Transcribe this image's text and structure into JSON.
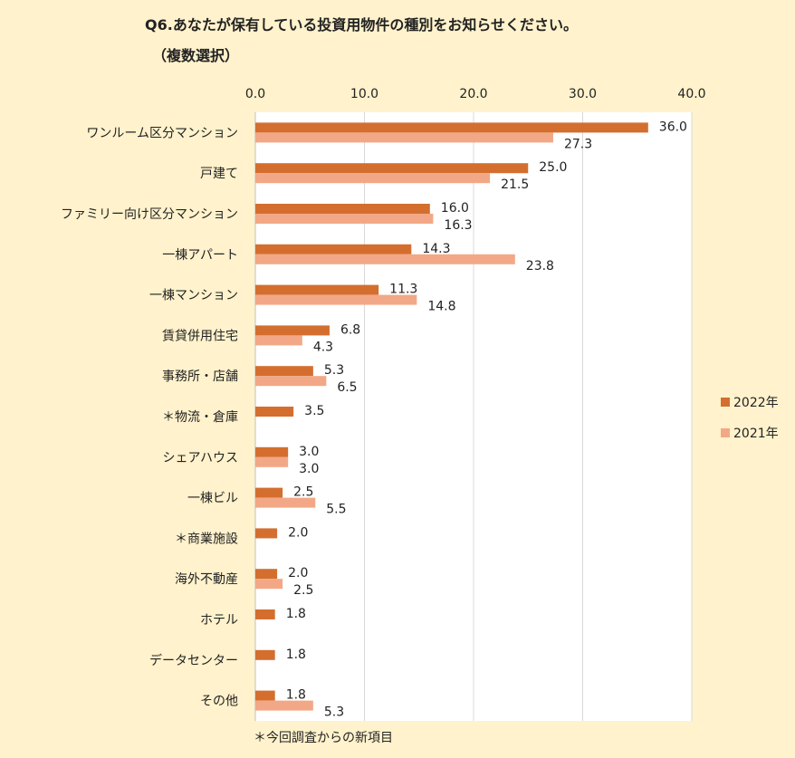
{
  "header": {
    "title": "Q6.あなたが保有している投資用物件の種別をお知らせください。",
    "subtitle": "（複数選択）"
  },
  "footnote": "＊今回調査からの新項目",
  "colors": {
    "series_2022": "#d46e2f",
    "series_2021": "#f2a886",
    "plot_background": "#ffffff",
    "page_background": "#fff2cc",
    "gridline": "#d9d9d9"
  },
  "chart_data": {
    "type": "bar",
    "orientation": "horizontal",
    "categories": [
      "ワンルーム区分マンション",
      "戸建て",
      "ファミリー向け区分マンション",
      "一棟アパート",
      "一棟マンション",
      "賃貸併用住宅",
      "事務所・店舗",
      "＊物流・倉庫",
      "シェアハウス",
      "一棟ビル",
      "＊商業施設",
      "海外不動産",
      "ホテル",
      "データセンター",
      "その他"
    ],
    "series": [
      {
        "name": "2022年",
        "values": [
          36.0,
          25.0,
          16.0,
          14.3,
          11.3,
          6.8,
          5.3,
          3.5,
          3.0,
          2.5,
          2.0,
          2.0,
          1.8,
          1.8,
          1.8
        ],
        "labels": [
          "36.0",
          "25.0",
          "16.0",
          "14.3",
          "11.3",
          "6.8",
          "5.3",
          "3.5",
          "3.0",
          "2.5",
          "2.0",
          "2.0",
          "1.8",
          "1.8",
          "1.8"
        ]
      },
      {
        "name": "2021年",
        "values": [
          27.3,
          21.5,
          16.3,
          23.8,
          14.8,
          4.3,
          6.5,
          null,
          3.0,
          5.5,
          null,
          2.5,
          null,
          null,
          5.3
        ],
        "labels": [
          "27.3",
          "21.5",
          "16.3",
          "23.8",
          "14.8",
          "4.3",
          "6.5",
          "",
          "3.0",
          "5.5",
          "",
          "2.5",
          "",
          "",
          "5.3"
        ]
      }
    ],
    "xlim": [
      0,
      40
    ],
    "xticks": [
      "0.0",
      "10.0",
      "20.0",
      "30.0",
      "40.0"
    ],
    "xtick_values": [
      0,
      10,
      20,
      30,
      40
    ],
    "axis_position": "top",
    "grid": true,
    "legend_position": "right"
  }
}
